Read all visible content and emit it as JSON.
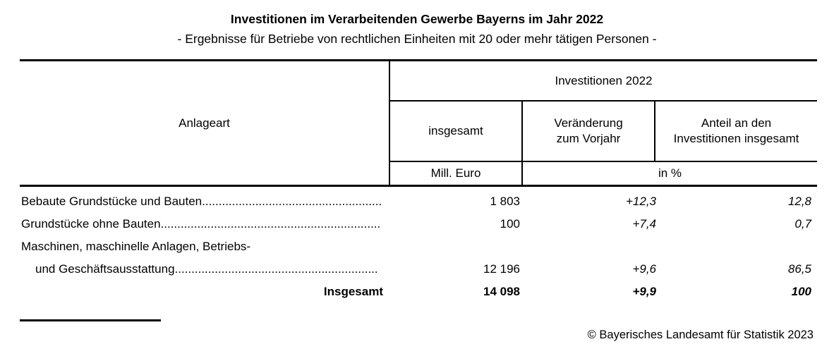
{
  "page": {
    "title": "Investitionen im Verarbeitenden Gewerbe Bayerns im Jahr 2022",
    "subtitle": "- Ergebnisse für Betriebe von rechtlichen Einheiten mit 20 oder mehr tätigen Personen -",
    "copyright": "© Bayerisches Landesamt für Statistik 2023"
  },
  "colors": {
    "text": "#000000",
    "background": "#ffffff",
    "border": "#000000"
  },
  "table": {
    "col_anlageart": "Anlageart",
    "group_header": "Investitionen 2022",
    "col_insgesamt": "insgesamt",
    "col_veraenderung": "Veränderung\nzum Vorjahr",
    "col_anteil": "Anteil an den\nInvestitionen insgesamt",
    "unit_mill_euro": "Mill. Euro",
    "unit_percent": "in %",
    "rows": [
      {
        "label": "Bebaute Grundstücke und Bauten..........................................................",
        "insgesamt": "1 803",
        "veraenderung": "+12,3",
        "anteil": "12,8"
      },
      {
        "label": "Grundstücke ohne Bauten...................................................................",
        "insgesamt": "100",
        "veraenderung": "+7,4",
        "anteil": "0,7"
      },
      {
        "label": "Maschinen, maschinelle Anlagen, Betriebs-"
      },
      {
        "label": "und Geschäftsausstattung.............................................................",
        "insgesamt": "12 196",
        "veraenderung": "+9,6",
        "anteil": "86,5"
      },
      {
        "label": "Insgesamt",
        "insgesamt": "14 098",
        "veraenderung": "+9,9",
        "anteil": "100"
      }
    ]
  }
}
